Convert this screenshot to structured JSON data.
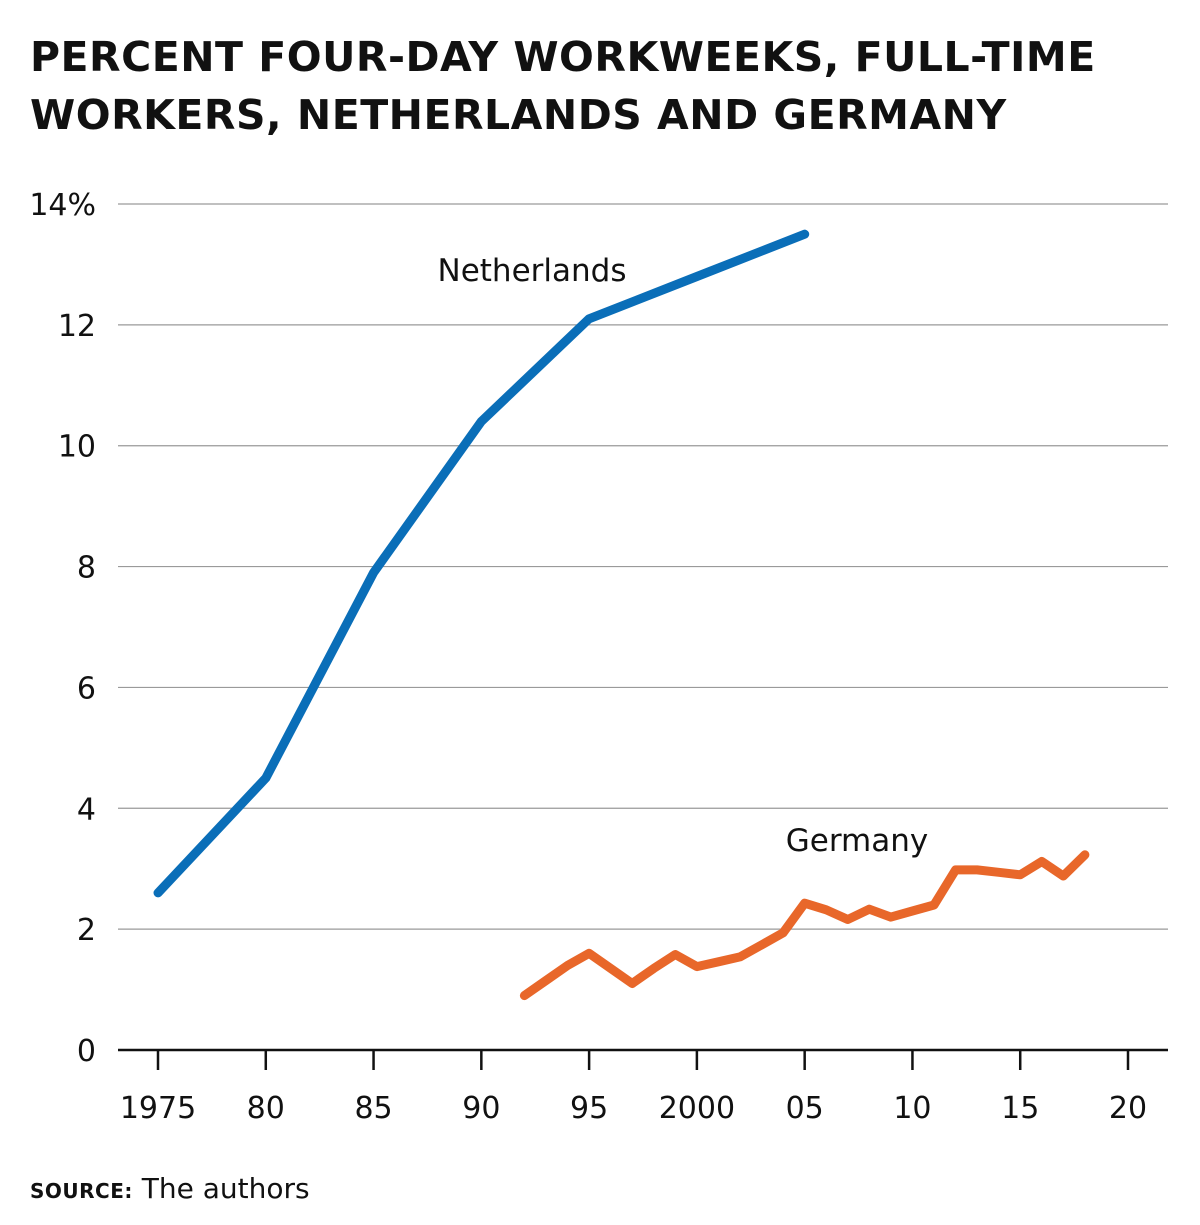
{
  "title": "PERCENT FOUR-DAY WORKWEEKS, FULL-TIME WORKERS, NETHERLANDS AND GERMANY",
  "source": {
    "label": "SOURCE:",
    "text": " The authors"
  },
  "colors": {
    "netherlands": "#0a6eb8",
    "germany": "#e8672a",
    "grid": "#9a9a9a",
    "axis": "#111111"
  },
  "chart_data": {
    "type": "line",
    "title": "PERCENT FOUR-DAY WORKWEEKS, FULL-TIME WORKERS, NETHERLANDS AND GERMANY",
    "xlabel": "",
    "ylabel": "",
    "xlim": [
      1974,
      2021
    ],
    "ylim": [
      0,
      14
    ],
    "x_ticks": [
      1975,
      1980,
      1985,
      1990,
      1995,
      2000,
      2005,
      2010,
      2015,
      2020
    ],
    "x_tick_labels": [
      "1975",
      "80",
      "85",
      "90",
      "95",
      "2000",
      "05",
      "10",
      "15",
      "20"
    ],
    "y_ticks": [
      0,
      2,
      4,
      6,
      8,
      10,
      12,
      14
    ],
    "y_tick_labels": [
      "0",
      "2",
      "4",
      "6",
      "8",
      "10",
      "12",
      "14%"
    ],
    "grid": true,
    "series": [
      {
        "name": "Netherlands",
        "color": "#0a6eb8",
        "x": [
          1975,
          1980,
          1985,
          1990,
          1995,
          2000,
          2005
        ],
        "y": [
          2.6,
          4.5,
          7.9,
          10.4,
          12.1,
          12.8,
          13.5
        ]
      },
      {
        "name": "Germany",
        "color": "#e8672a",
        "x": [
          1992,
          1993,
          1994,
          1995,
          1996,
          1997,
          1998,
          1999,
          2000,
          2001,
          2002,
          2003,
          2004,
          2005,
          2006,
          2007,
          2008,
          2009,
          2010,
          2011,
          2012,
          2013,
          2014,
          2015,
          2016,
          2017,
          2018
        ],
        "y": [
          0.9,
          1.15,
          1.4,
          1.6,
          1.35,
          1.1,
          1.35,
          1.58,
          1.38,
          1.46,
          1.54,
          1.74,
          1.94,
          2.43,
          2.32,
          2.16,
          2.33,
          2.2,
          2.3,
          2.4,
          2.98,
          2.98,
          2.94,
          2.9,
          3.12,
          2.88,
          3.23
        ]
      }
    ]
  }
}
